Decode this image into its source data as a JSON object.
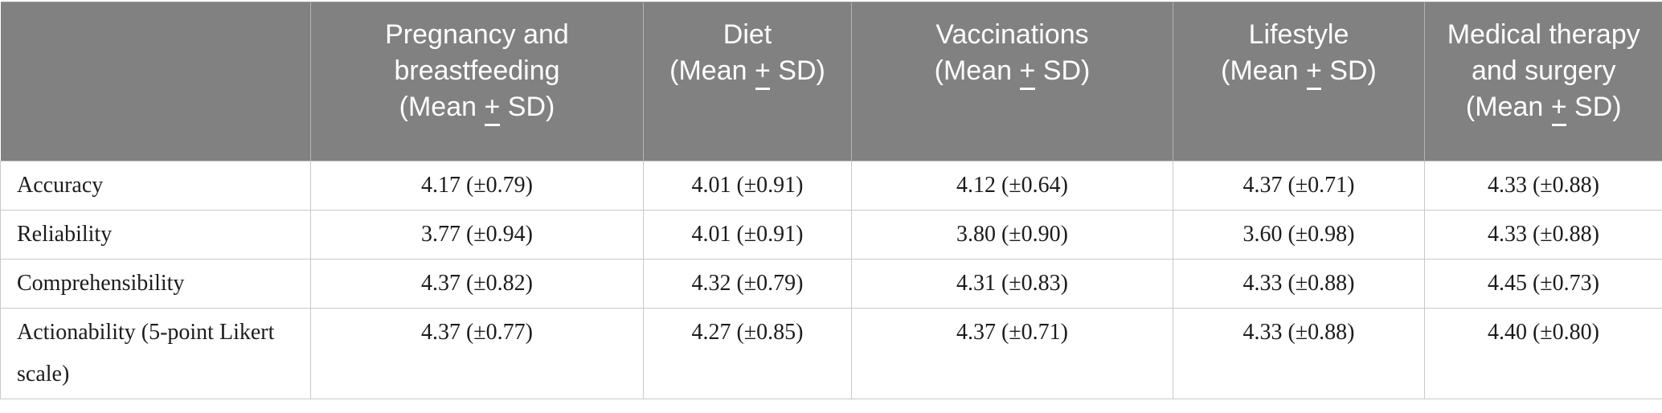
{
  "table": {
    "corner_label": "",
    "columns": [
      {
        "title": "Pregnancy and breastfeeding",
        "subtitle": "(Mean ± SD)"
      },
      {
        "title": "Diet",
        "subtitle": "(Mean ± SD)"
      },
      {
        "title": "Vaccinations",
        "subtitle": "(Mean ± SD)"
      },
      {
        "title": "Lifestyle",
        "subtitle": "(Mean ± SD)"
      },
      {
        "title": "Medical therapy and surgery",
        "subtitle": "(Mean ± SD)"
      }
    ],
    "rows": [
      {
        "label": "Accuracy",
        "values": [
          "4.17 (±0.79)",
          "4.01 (±0.91)",
          "4.12 (±0.64)",
          "4.37 (±0.71)",
          "4.33 (±0.88)"
        ]
      },
      {
        "label": "Reliability",
        "values": [
          "3.77 (±0.94)",
          "4.01 (±0.91)",
          "3.80 (±0.90)",
          "3.60 (±0.98)",
          "4.33 (±0.88)"
        ]
      },
      {
        "label": "Comprehensibility",
        "values": [
          "4.37 (±0.82)",
          "4.32 (±0.79)",
          "4.31 (±0.83)",
          "4.33 (±0.88)",
          "4.45 (±0.73)"
        ]
      },
      {
        "label": "Actionability (5-point Likert scale)",
        "values": [
          "4.37 (±0.77)",
          "4.27 (±0.85)",
          "4.37 (±0.71)",
          "4.33 (±0.88)",
          "4.40 (±0.80)"
        ]
      }
    ]
  },
  "colors": {
    "header_bg": "#818181",
    "header_text": "#ffffff",
    "body_text": "#1c1c1c",
    "border": "#c9c9c9",
    "header_divider": "#b3b3b3",
    "page_bg": "#ffffff"
  }
}
